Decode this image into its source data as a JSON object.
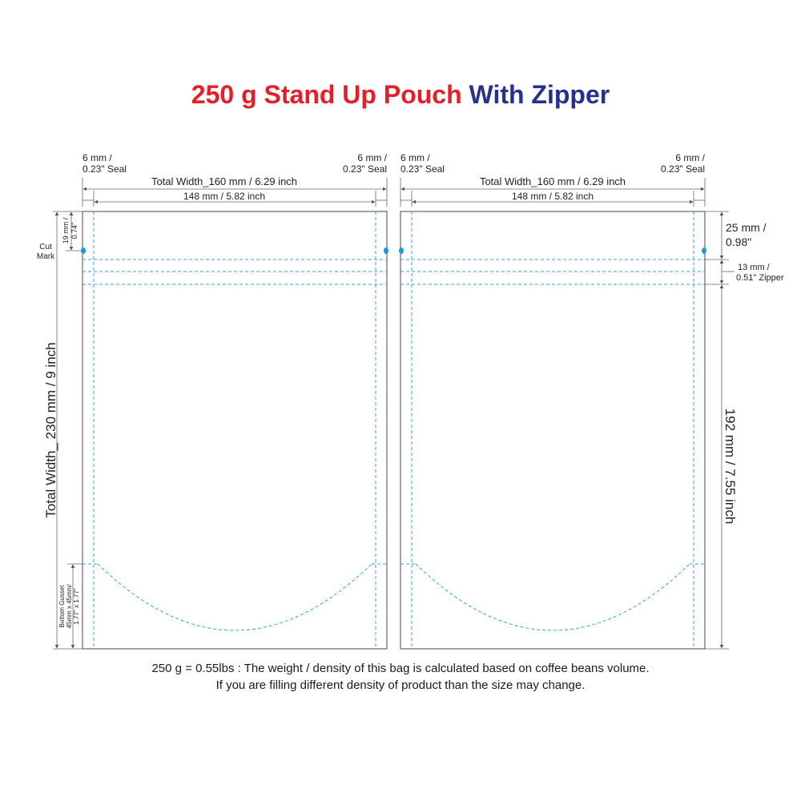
{
  "title": {
    "part1": "250 g Stand Up Pouch",
    "part2": "With Zipper"
  },
  "colors": {
    "title_red": "#e3202a",
    "title_blue": "#2a2f8f",
    "dashed_guides": "#2fa6d6",
    "outline": "#555555",
    "cut_mark": "#1f9ad6"
  },
  "left_panel": {
    "seal_left_line1": "6 mm /",
    "seal_left_line2": "0.23\" Seal",
    "seal_right_line1": "6 mm /",
    "seal_right_line2": "0.23\" Seal",
    "total_width": "Total Width_160 mm / 6.29 inch",
    "inner_width": "148 mm / 5.82 inch",
    "cut_mark_line1": "Cut",
    "cut_mark_line2": "Mark",
    "top_dim_line1": "19 mm /",
    "top_dim_line2": "0.74\"",
    "total_height": "Total Width_ 230 mm / 9 inch",
    "gusset_line1": "Bottom Gusset",
    "gusset_line2": "45mm x 45mm/",
    "gusset_line3": "1.77\" x 1.77\""
  },
  "right_panel": {
    "seal_left_line1": "6 mm /",
    "seal_left_line2": "0.23\" Seal",
    "seal_right_line1": "6 mm /",
    "seal_right_line2": "0.23\" Seal",
    "total_width": "Total Width_160 mm / 6.29 inch",
    "inner_width": "148 mm / 5.82 inch",
    "top_dim_line1": "25 mm /",
    "top_dim_line2": "0.98\"",
    "zipper_line1": "13 mm /",
    "zipper_line2": "0.51\" Zipper",
    "body_height": "192 mm / 7.55 inch"
  },
  "footnote": {
    "line1": "250 g = 0.55lbs : The weight / density of this bag is calculated based on coffee beans volume.",
    "line2": "If you are filling different density of product than the size may change."
  }
}
